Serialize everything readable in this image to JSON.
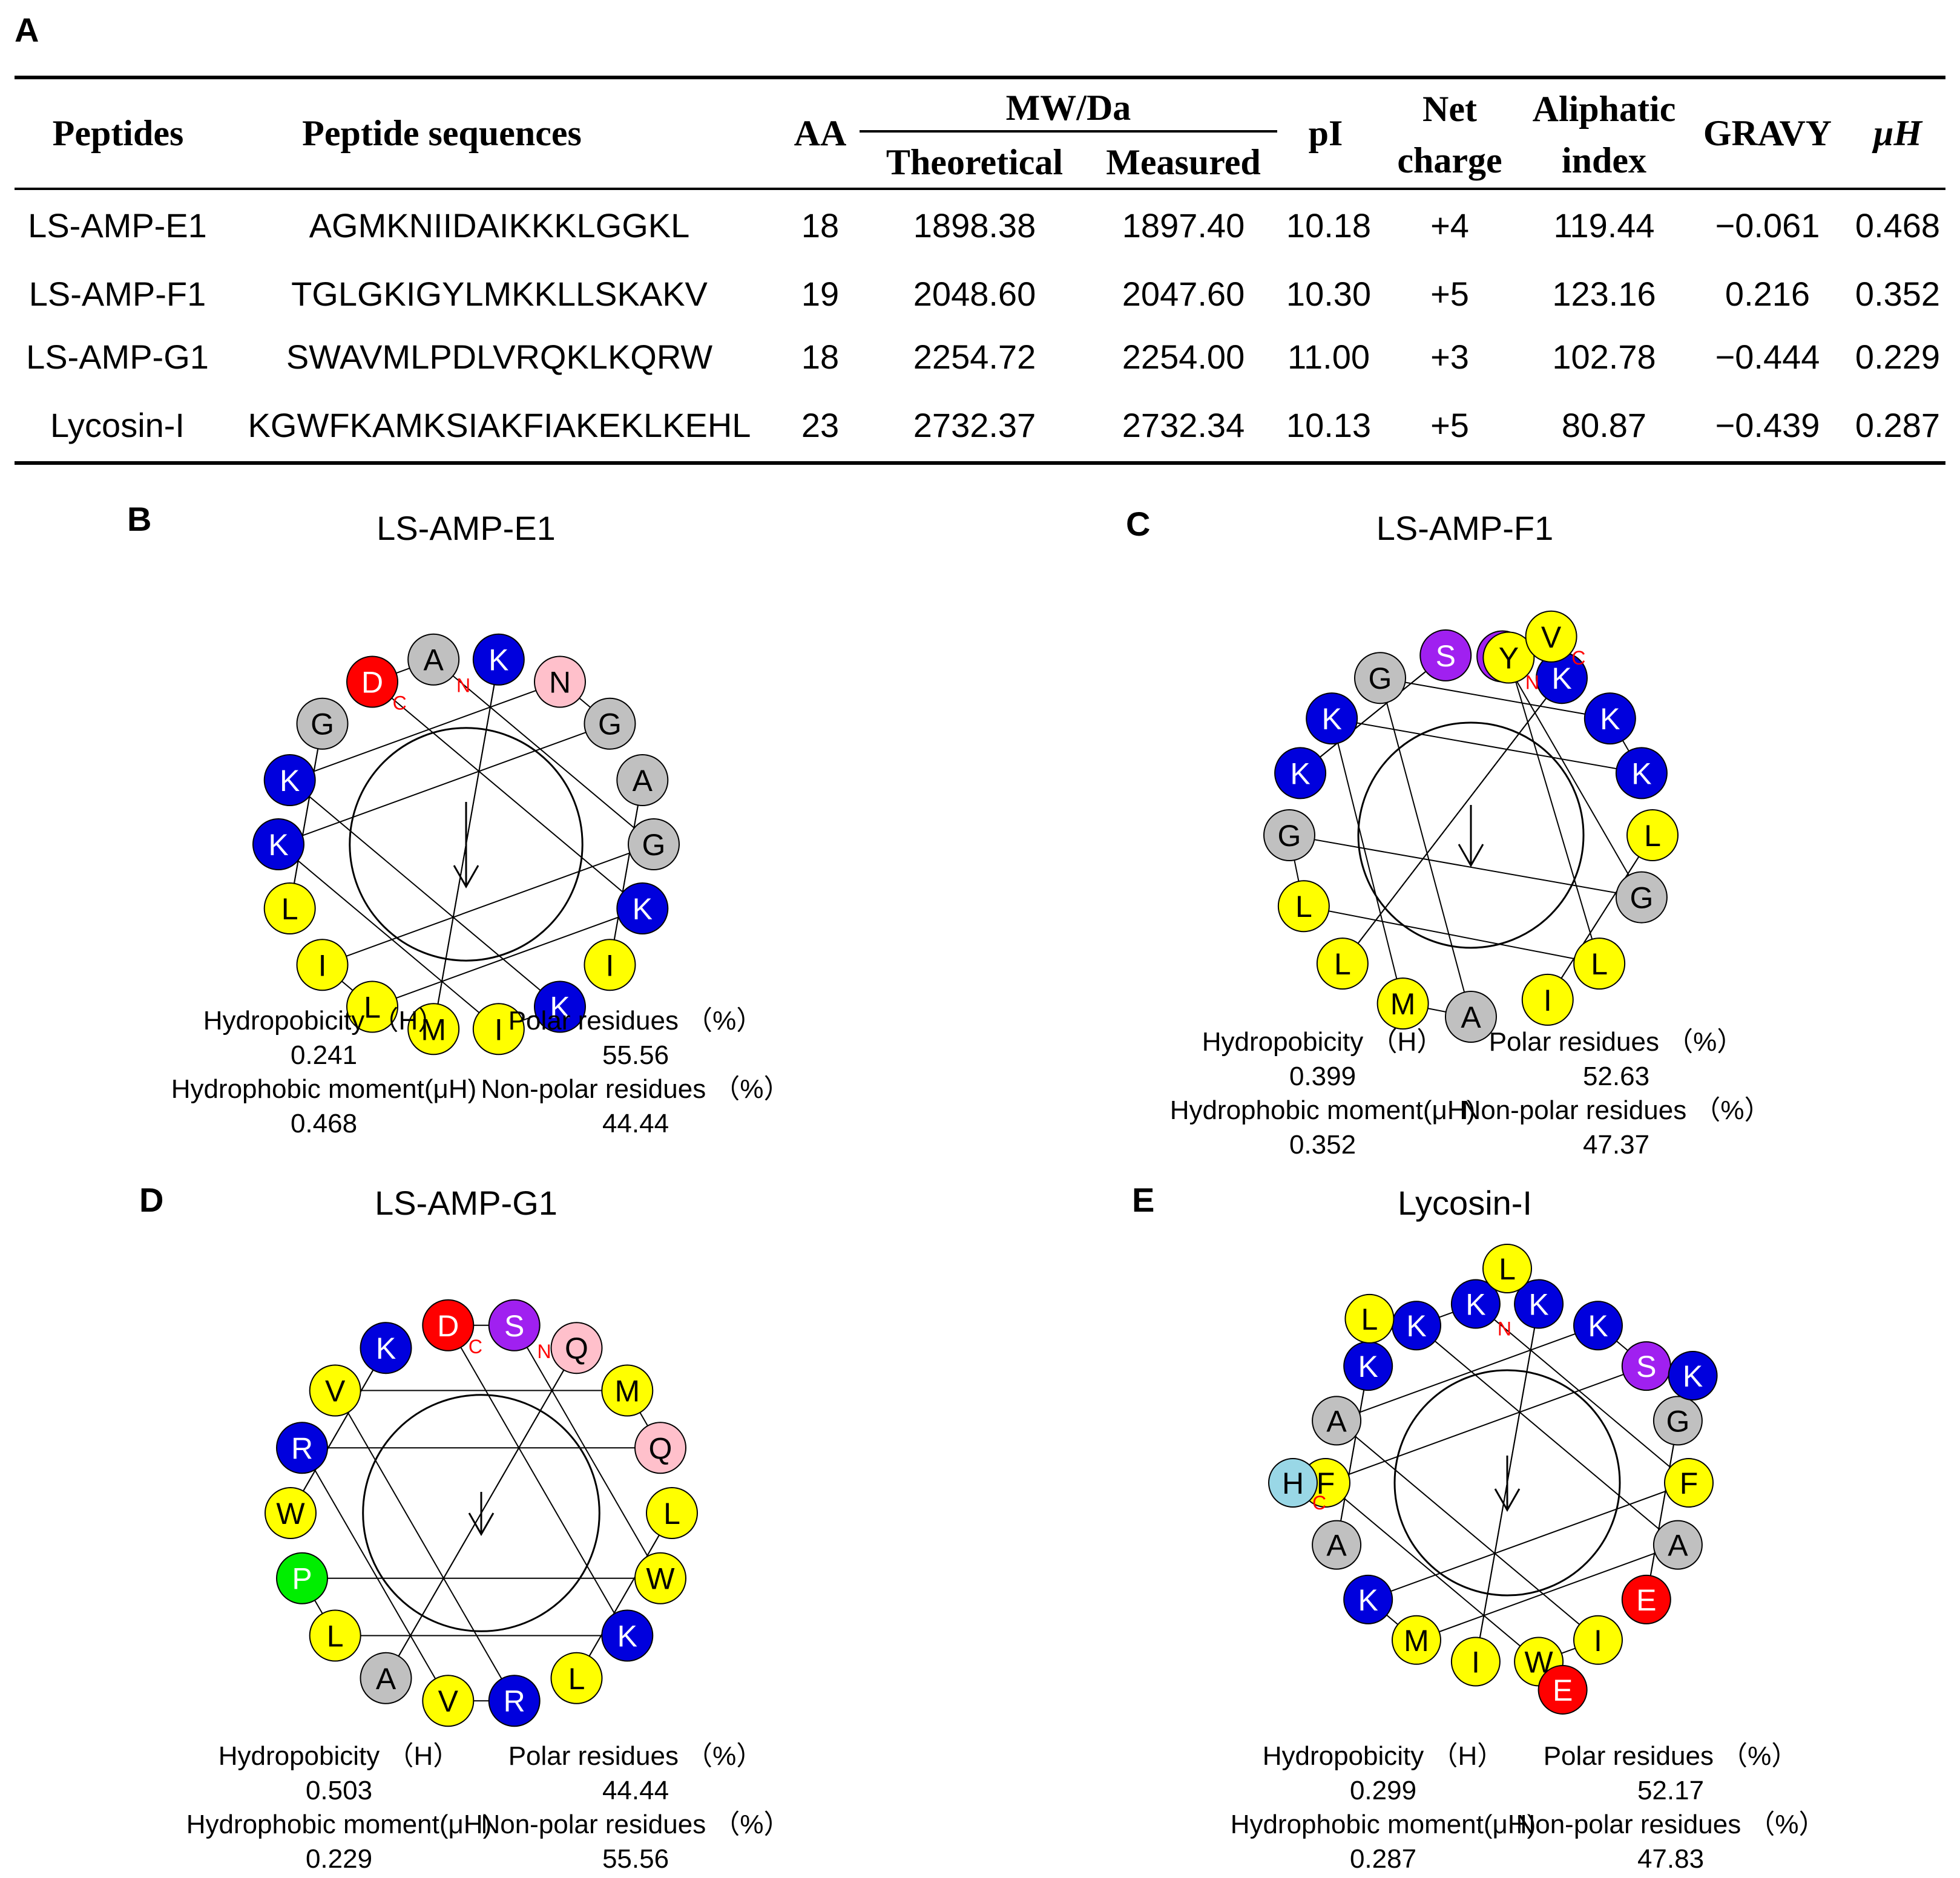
{
  "panel_labels": {
    "a": "A",
    "b": "B",
    "c": "C",
    "d": "D",
    "e": "E"
  },
  "colors": {
    "gray": "#c0c0c0",
    "blue": "#0000dd",
    "yellow": "#ffff00",
    "red": "#ff0000",
    "pink": "#ffc0cb",
    "purple": "#a020f0",
    "green": "#00ee00",
    "lightblue": "#99d7e6",
    "terminus": "#ff0000"
  },
  "table": {
    "headers": {
      "peptides": "Peptides",
      "sequences": "Peptide sequences",
      "aa": "AA",
      "mw": "MW/Da",
      "theoretical": "Theoretical",
      "measured": "Measured",
      "pi": "pI",
      "net_charge_1": "Net",
      "net_charge_2": "charge",
      "aliphatic_1": "Aliphatic",
      "aliphatic_2": "index",
      "gravy": "GRAVY",
      "muh": "μH"
    },
    "rows": [
      {
        "name": "LS-AMP-E1",
        "seq": "AGMKNIIDAIKKKLGGKL",
        "aa": "18",
        "theoretical": "1898.38",
        "measured": "1897.40",
        "pi": "10.18",
        "charge": "+4",
        "aliphatic": "119.44",
        "gravy": "−0.061",
        "muh": "0.468"
      },
      {
        "name": "LS-AMP-F1",
        "seq": "TGLGKIGYLMKKLLSKAKV",
        "aa": "19",
        "theoretical": "2048.60",
        "measured": "2047.60",
        "pi": "10.30",
        "charge": "+5",
        "aliphatic": "123.16",
        "gravy": "0.216",
        "muh": "0.352"
      },
      {
        "name": "LS-AMP-G1",
        "seq": "SWAVMLPDLVRQKLKQRW",
        "aa": "18",
        "theoretical": "2254.72",
        "measured": "2254.00",
        "pi": "11.00",
        "charge": "+3",
        "aliphatic": "102.78",
        "gravy": "−0.444",
        "muh": "0.229"
      },
      {
        "name": "Lycosin-I",
        "seq": "KGWFKAMKSIAKFIAKEKLKEHL",
        "aa": "23",
        "theoretical": "2732.37",
        "measured": "2732.34",
        "pi": "10.13",
        "charge": "+5",
        "aliphatic": "80.87",
        "gravy": "−0.439",
        "muh": "0.287"
      }
    ]
  },
  "wheels": [
    {
      "id": "e1",
      "title": "LS-AMP-E1",
      "sequence": "AGMKNIIDAIKKKLGGKL",
      "order": [
        {
          "aa": "A",
          "c": "gray",
          "a": -100
        },
        {
          "aa": "K",
          "c": "blue",
          "a": -80
        },
        {
          "aa": "N",
          "c": "pink",
          "a": -60
        },
        {
          "aa": "G",
          "c": "gray",
          "a": -40
        },
        {
          "aa": "A",
          "c": "gray",
          "a": -20
        },
        {
          "aa": "G",
          "c": "gray",
          "a": 0
        },
        {
          "aa": "K",
          "c": "blue",
          "a": 20
        },
        {
          "aa": "I",
          "c": "yellow",
          "a": 40
        },
        {
          "aa": "K",
          "c": "blue",
          "a": 60
        },
        {
          "aa": "I",
          "c": "yellow",
          "a": 80
        },
        {
          "aa": "M",
          "c": "yellow",
          "a": 100
        },
        {
          "aa": "L",
          "c": "yellow",
          "a": 120
        },
        {
          "aa": "I",
          "c": "yellow",
          "a": 140
        },
        {
          "aa": "L",
          "c": "yellow",
          "a": 160
        },
        {
          "aa": "K",
          "c": "blue",
          "a": 180
        },
        {
          "aa": "K",
          "c": "blue",
          "a": 200
        },
        {
          "aa": "G",
          "c": "gray",
          "a": 220
        },
        {
          "aa": "D",
          "c": "red",
          "a": 240
        }
      ],
      "n_label": "N",
      "c_label": "C",
      "stats": {
        "h_label": "Hydropobicity （H）",
        "h_value": "0.241",
        "polar_label": "Polar residues （%）",
        "polar_value": "55.56",
        "muh_label": "Hydrophobic moment(μH)",
        "muh_value": "0.468",
        "nonpolar_label": "Non-polar residues （%）",
        "nonpolar_value": "44.44"
      }
    },
    {
      "id": "f1",
      "title": "LS-AMP-F1",
      "sequence": "TGLGKIGYLMKKLLSKAKV",
      "order": [
        {
          "aa": "T",
          "c": "purple",
          "a": -80
        },
        {
          "aa": "K",
          "c": "blue",
          "a": -60
        },
        {
          "aa": "K",
          "c": "blue",
          "a": -40
        },
        {
          "aa": "K",
          "c": "blue",
          "a": -20
        },
        {
          "aa": "L",
          "c": "yellow",
          "a": 0
        },
        {
          "aa": "G",
          "c": "gray",
          "a": 20
        },
        {
          "aa": "L",
          "c": "yellow",
          "a": 45
        },
        {
          "aa": "I",
          "c": "yellow",
          "a": 65
        },
        {
          "aa": "A",
          "c": "gray",
          "a": 90
        },
        {
          "aa": "M",
          "c": "yellow",
          "a": 112
        },
        {
          "aa": "L",
          "c": "yellow",
          "a": 135
        },
        {
          "aa": "L",
          "c": "yellow",
          "a": 157
        },
        {
          "aa": "G",
          "c": "gray",
          "a": 180
        },
        {
          "aa": "K",
          "c": "blue",
          "a": 200
        },
        {
          "aa": "K",
          "c": "blue",
          "a": 220
        },
        {
          "aa": "G",
          "c": "gray",
          "a": 240
        },
        {
          "aa": "S",
          "c": "purple",
          "a": 262
        },
        {
          "aa": "Y",
          "c": "yellow",
          "a": 282
        },
        {
          "aa": "V",
          "c": "yellow",
          "a": -68,
          "outer": true
        }
      ],
      "n_label": "N",
      "c_label": "C",
      "stats": {
        "h_label": "Hydropobicity （H）",
        "h_value": "0.399",
        "polar_label": "Polar residues （%）",
        "polar_value": "52.63",
        "muh_label": "Hydrophobic moment(μH)",
        "muh_value": "0.352",
        "nonpolar_label": "Non-polar residues （%）",
        "nonpolar_value": "47.37"
      }
    },
    {
      "id": "g1",
      "title": "LS-AMP-G1",
      "sequence": "SWAVMLPDLVRQKLKQRW",
      "order": [
        {
          "aa": "S",
          "c": "purple",
          "a": -80
        },
        {
          "aa": "Q",
          "c": "pink",
          "a": -60
        },
        {
          "aa": "M",
          "c": "yellow",
          "a": -40
        },
        {
          "aa": "Q",
          "c": "pink",
          "a": -20
        },
        {
          "aa": "L",
          "c": "yellow",
          "a": 0
        },
        {
          "aa": "W",
          "c": "yellow",
          "a": 20
        },
        {
          "aa": "K",
          "c": "blue",
          "a": 40
        },
        {
          "aa": "L",
          "c": "yellow",
          "a": 60
        },
        {
          "aa": "R",
          "c": "blue",
          "a": 80
        },
        {
          "aa": "V",
          "c": "yellow",
          "a": 100
        },
        {
          "aa": "A",
          "c": "gray",
          "a": 120
        },
        {
          "aa": "L",
          "c": "yellow",
          "a": 140
        },
        {
          "aa": "P",
          "c": "green",
          "a": 160
        },
        {
          "aa": "W",
          "c": "yellow",
          "a": 180
        },
        {
          "aa": "R",
          "c": "blue",
          "a": 200
        },
        {
          "aa": "V",
          "c": "yellow",
          "a": 220
        },
        {
          "aa": "K",
          "c": "blue",
          "a": 240
        },
        {
          "aa": "D",
          "c": "red",
          "a": 260
        }
      ],
      "n_label": "N",
      "c_label": "C",
      "stats": {
        "h_label": "Hydropobicity （H）",
        "h_value": "0.503",
        "polar_label": "Polar residues （%）",
        "polar_value": "44.44",
        "muh_label": "Hydrophobic moment(μH)",
        "muh_value": "0.229",
        "nonpolar_label": "Non-polar residues （%）",
        "nonpolar_value": "55.56"
      }
    },
    {
      "id": "lyc",
      "title": "Lycosin-I",
      "sequence": "KGWFKAMKSIAKFIAKEKLKEHL",
      "order": [
        {
          "aa": "K",
          "c": "blue",
          "a": -100
        },
        {
          "aa": "K",
          "c": "blue",
          "a": -80
        },
        {
          "aa": "K",
          "c": "blue",
          "a": -60
        },
        {
          "aa": "S",
          "c": "purple",
          "a": -40
        },
        {
          "aa": "G",
          "c": "gray",
          "a": -20
        },
        {
          "aa": "F",
          "c": "yellow",
          "a": 0
        },
        {
          "aa": "A",
          "c": "gray",
          "a": 20
        },
        {
          "aa": "E",
          "c": "red",
          "a": 40
        },
        {
          "aa": "I",
          "c": "yellow",
          "a": 60
        },
        {
          "aa": "W",
          "c": "yellow",
          "a": 80
        },
        {
          "aa": "I",
          "c": "yellow",
          "a": 100
        },
        {
          "aa": "M",
          "c": "yellow",
          "a": 120
        },
        {
          "aa": "K",
          "c": "blue",
          "a": 140
        },
        {
          "aa": "A",
          "c": "gray",
          "a": 160
        },
        {
          "aa": "F",
          "c": "yellow",
          "a": 180
        },
        {
          "aa": "A",
          "c": "gray",
          "a": 200
        },
        {
          "aa": "K",
          "c": "blue",
          "a": 220
        },
        {
          "aa": "K",
          "c": "blue",
          "a": 240
        },
        {
          "aa": "L",
          "c": "yellow",
          "a": 230,
          "outer": true
        },
        {
          "aa": "L",
          "c": "yellow",
          "a": -90,
          "outer": true
        },
        {
          "aa": "K",
          "c": "blue",
          "a": -30,
          "outer": true
        },
        {
          "aa": "E",
          "c": "red",
          "a": 75,
          "outer": true
        },
        {
          "aa": "H",
          "c": "lightblue",
          "a": 180,
          "outer": true
        }
      ],
      "n_label": "N",
      "c_label": "C",
      "stats": {
        "h_label": "Hydropobicity （H）",
        "h_value": "0.299",
        "polar_label": "Polar residues （%）",
        "polar_value": "52.17",
        "muh_label": "Hydrophobic moment(μH)",
        "muh_value": "0.287",
        "nonpolar_label": "Non-polar residues （%）",
        "nonpolar_value": "47.83"
      }
    }
  ]
}
